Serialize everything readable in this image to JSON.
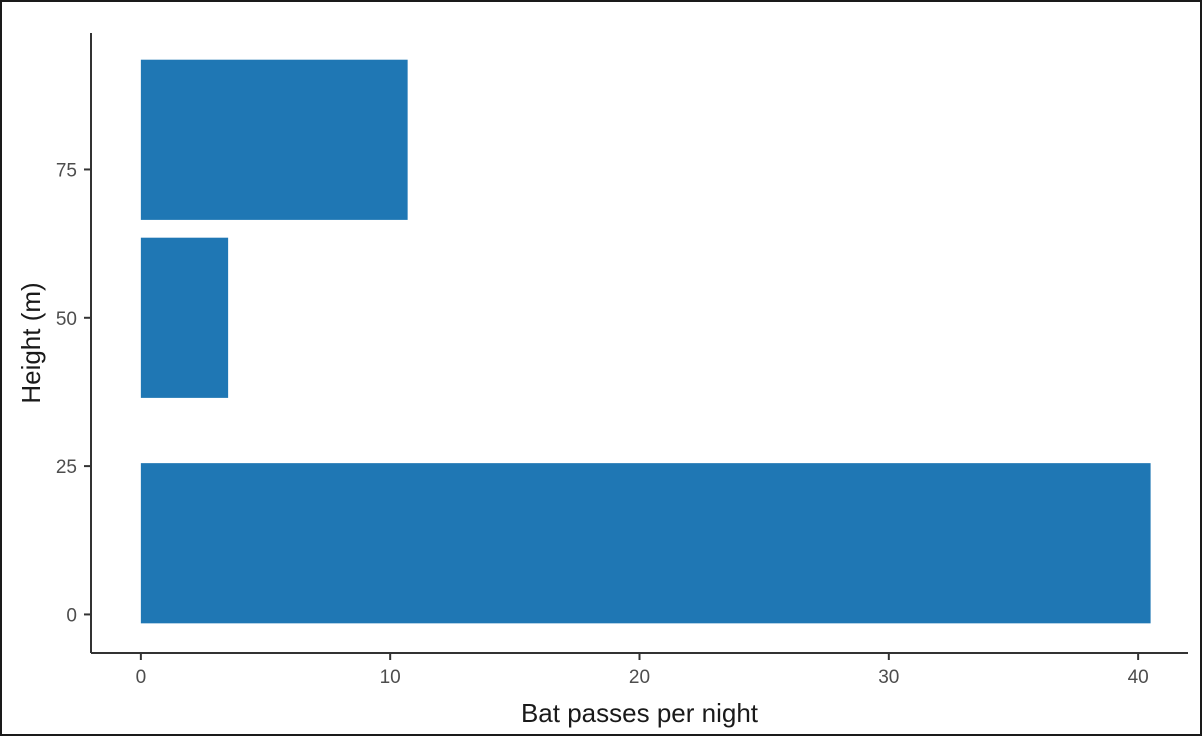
{
  "chart_data": {
    "type": "bar",
    "orientation": "horizontal",
    "xlabel": "Bat passes per night",
    "ylabel": "Height (m)",
    "bar_color": "#1f77b4",
    "xlim": [
      -2,
      42
    ],
    "ylim": [
      -6.5,
      98
    ],
    "xticks": [
      0,
      10,
      20,
      30,
      40
    ],
    "yticks": [
      0,
      25,
      50,
      75
    ],
    "bars": [
      {
        "height_from": -1.5,
        "height_to": 25.5,
        "value": 40.5
      },
      {
        "height_from": 36.5,
        "height_to": 63.5,
        "value": 3.5
      },
      {
        "height_from": 66.5,
        "height_to": 93.5,
        "value": 10.7
      }
    ],
    "grid": false,
    "legend": "none"
  }
}
